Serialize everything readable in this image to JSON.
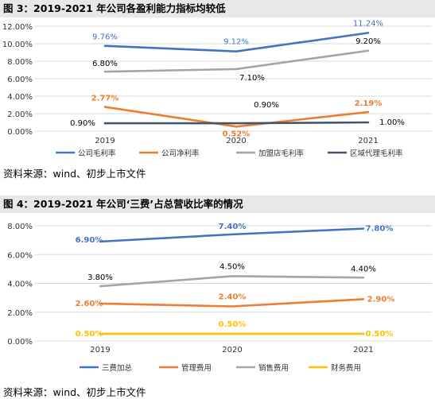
{
  "figures": [
    {
      "title": "图 3：2019-2021 年公司各盈利能力指标均较低",
      "source": "资料来源：wind、初步上市文件",
      "chart_data": {
        "type": "line",
        "categories": [
          "2019",
          "2020",
          "2021"
        ],
        "ylim": [
          0,
          12
        ],
        "yticks": [
          "0.00%",
          "2.00%",
          "4.00%",
          "6.00%",
          "8.00%",
          "10.00%",
          "12.00%"
        ],
        "grid": true,
        "legend_position": "bottom",
        "series": [
          {
            "name": "公司毛利率",
            "color": "#4472c4",
            "values": [
              9.76,
              9.12,
              11.24
            ],
            "labels": [
              "9.76%",
              "9.12%",
              "11.24%"
            ],
            "label_color": "#4472c4",
            "label_bold": false
          },
          {
            "name": "公司净利率",
            "color": "#ed7d31",
            "values": [
              2.77,
              0.52,
              2.19
            ],
            "labels": [
              "2.77%",
              "0.52%",
              "2.19%"
            ],
            "label_color": "#ed7d31",
            "label_bold": true
          },
          {
            "name": "加盟店毛利率",
            "color": "#a5a5a5",
            "values": [
              6.8,
              7.1,
              9.2
            ],
            "labels": [
              "6.80%",
              "7.10%",
              "9.20%"
            ],
            "label_color": "#000000",
            "label_bold": false
          },
          {
            "name": "区域代理毛利率",
            "color": "#44546a",
            "values": [
              0.9,
              0.9,
              1.0
            ],
            "labels": [
              "0.90%",
              "0.90%",
              "1.00%"
            ],
            "label_color": "#000000",
            "label_bold": false
          }
        ]
      }
    },
    {
      "title": "图 4：2019-2021 年公司‘三费’占总营收比率的情况",
      "source": "资料来源：wind、初步上市文件",
      "chart_data": {
        "type": "line",
        "categories": [
          "2019",
          "2020",
          "2021"
        ],
        "ylim": [
          0,
          8
        ],
        "yticks": [
          "0.00%",
          "2.00%",
          "4.00%",
          "6.00%",
          "8.00%"
        ],
        "grid": true,
        "legend_position": "bottom",
        "series": [
          {
            "name": "三费加总",
            "color": "#4472c4",
            "values": [
              6.9,
              7.4,
              7.8
            ],
            "labels": [
              "6.90%",
              "7.40%",
              "7.80%"
            ],
            "label_color": "#4472c4",
            "label_bold": true
          },
          {
            "name": "管理费用",
            "color": "#ed7d31",
            "values": [
              2.6,
              2.4,
              2.9
            ],
            "labels": [
              "2.60%",
              "2.40%",
              "2.90%"
            ],
            "label_color": "#ed7d31",
            "label_bold": true
          },
          {
            "name": "销售费用",
            "color": "#a5a5a5",
            "values": [
              3.8,
              4.5,
              4.4
            ],
            "labels": [
              "3.80%",
              "4.50%",
              "4.40%"
            ],
            "label_color": "#000000",
            "label_bold": false
          },
          {
            "name": "财务费用",
            "color": "#ffc000",
            "values": [
              0.5,
              0.5,
              0.5
            ],
            "labels": [
              "0.50%",
              "0.50%",
              "0.50%"
            ],
            "label_color": "#ffc000",
            "label_bold": true
          }
        ]
      }
    }
  ]
}
